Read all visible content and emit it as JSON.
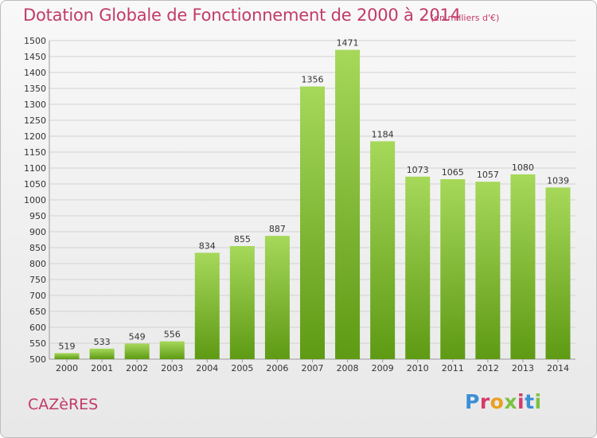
{
  "title": "Dotation Globale de Fonctionnement de 2000 à 2014",
  "subtitle": "(en milliers d'€)",
  "commune": "CAZèRES",
  "logo": "Proxiti",
  "colors": {
    "title": "#c23a6a",
    "bar_top": "#a6d85a",
    "bar_bottom": "#5e9a14",
    "grid": "#d2d2d2"
  },
  "chart_data": {
    "type": "bar",
    "title": "Dotation Globale de Fonctionnement de 2000 à 2014",
    "subtitle": "(en milliers d'€)",
    "categories": [
      "2000",
      "2001",
      "2002",
      "2003",
      "2004",
      "2005",
      "2006",
      "2007",
      "2008",
      "2009",
      "2010",
      "2011",
      "2012",
      "2013",
      "2014"
    ],
    "values": [
      519,
      533,
      549,
      556,
      834,
      855,
      887,
      1356,
      1471,
      1184,
      1073,
      1065,
      1057,
      1080,
      1039
    ],
    "ylim": [
      500,
      1500
    ],
    "ytick_step": 50,
    "grid": true,
    "data_labels": true
  }
}
